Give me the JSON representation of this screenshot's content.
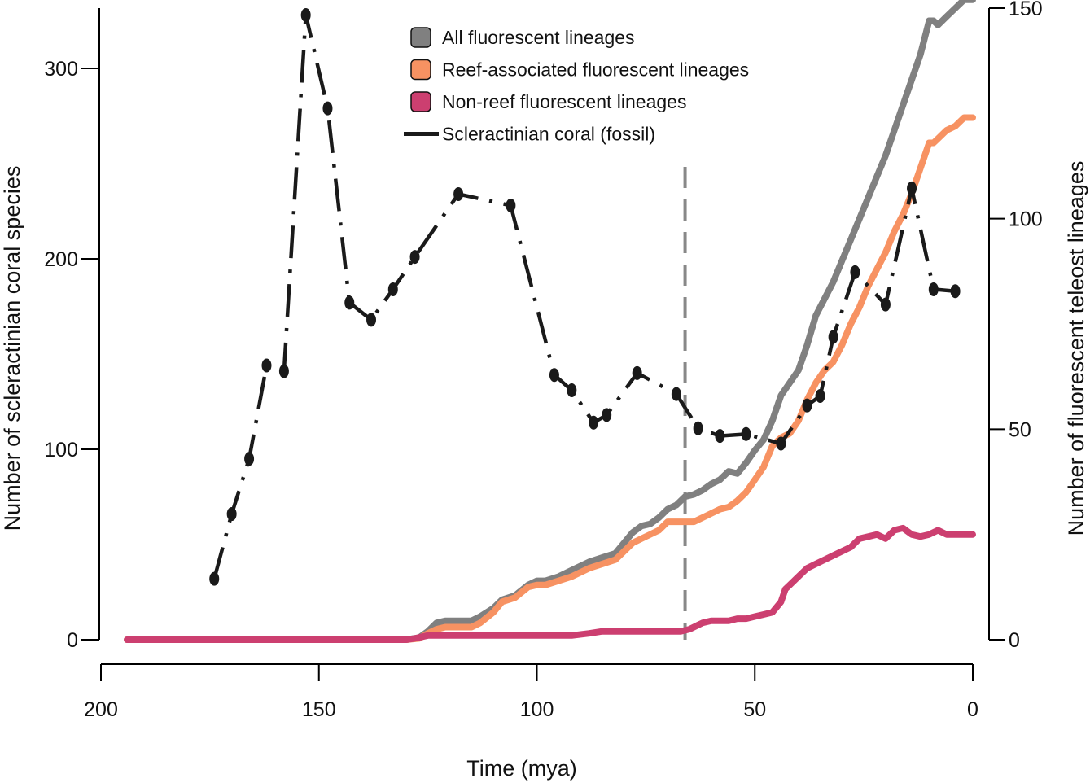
{
  "chart_data": {
    "type": "line",
    "x_axis": {
      "label": "Time (mya)",
      "range": [
        200,
        0
      ],
      "ticks": [
        200,
        150,
        100,
        50,
        0
      ],
      "reversed": true
    },
    "y_left": {
      "label": "Number of scleractinian coral species",
      "range": [
        0,
        335
      ],
      "ticks": [
        0,
        100,
        200,
        300
      ]
    },
    "y_right": {
      "label": "Number of fluorescent teleost lineages",
      "range": [
        0,
        150
      ],
      "ticks": [
        0,
        50,
        100,
        150
      ]
    },
    "vertical_marker": {
      "x": 66,
      "style": "dashed",
      "color": "#888888"
    },
    "legend": [
      {
        "label": "All fluorescent lineages",
        "color": "#808080",
        "kind": "box"
      },
      {
        "label": "Reef-associated fluorescent lineages",
        "color": "#F79262",
        "kind": "box"
      },
      {
        "label": "Non-reef fluorescent lineages",
        "color": "#CC3F70",
        "kind": "box"
      },
      {
        "label": "Scleractinian coral (fossil)",
        "color": "#1a1a1a",
        "kind": "line"
      }
    ],
    "series": [
      {
        "name": "All fluorescent lineages",
        "axis": "right",
        "color": "#808080",
        "x": [
          194,
          140,
          130,
          127,
          125,
          123,
          121,
          118,
          115,
          113,
          110,
          108,
          105,
          102,
          100,
          98,
          95,
          92,
          88,
          85,
          82,
          80,
          78,
          76,
          74,
          72,
          70,
          68,
          66,
          64,
          62,
          60,
          58,
          56,
          54,
          52,
          50,
          48,
          46,
          44,
          42,
          40,
          38,
          36,
          34,
          32,
          30,
          28,
          26,
          24,
          22,
          20,
          18,
          16,
          14,
          12,
          10,
          9,
          8,
          6,
          4,
          2,
          0
        ],
        "values": [
          0,
          0,
          0,
          0.5,
          2,
          4,
          4.5,
          4.5,
          4.5,
          5.5,
          7.5,
          9.5,
          10.5,
          13,
          14,
          14,
          15,
          16.5,
          18.5,
          19.5,
          20.5,
          23,
          25.5,
          27,
          27.5,
          29,
          31,
          32,
          34,
          34.5,
          35.5,
          37,
          38,
          40,
          39.5,
          42,
          45,
          47.5,
          52,
          58,
          61,
          64,
          70,
          77,
          81,
          85,
          90,
          95,
          100,
          105,
          110,
          115,
          121,
          127,
          133,
          139,
          147,
          147,
          146,
          148,
          150,
          152,
          152
        ]
      },
      {
        "name": "Reef-associated fluorescent lineages",
        "axis": "right",
        "color": "#F79262",
        "x": [
          194,
          140,
          130,
          127,
          125,
          123,
          121,
          118,
          115,
          113,
          110,
          108,
          105,
          102,
          100,
          98,
          95,
          92,
          88,
          85,
          82,
          80,
          78,
          76,
          74,
          72,
          70,
          68,
          66,
          64,
          62,
          60,
          58,
          56,
          54,
          52,
          50,
          48,
          46,
          44,
          42,
          40,
          38,
          36,
          34,
          32,
          30,
          28,
          26,
          24,
          22,
          20,
          18,
          16,
          14,
          12,
          10,
          9,
          8,
          6,
          4,
          2,
          0
        ],
        "values": [
          0,
          0,
          0,
          0.3,
          1.5,
          2.5,
          3,
          3,
          3,
          4,
          6.5,
          9,
          10,
          12.5,
          13,
          13,
          14,
          15,
          17,
          18,
          19,
          21,
          23,
          24,
          25,
          26,
          28,
          28,
          28,
          28,
          29,
          30,
          31,
          31.5,
          33,
          35,
          38,
          41,
          46,
          48,
          49,
          52,
          57,
          61,
          64,
          66,
          70,
          75,
          79,
          84,
          88,
          92,
          97,
          101,
          106,
          112,
          118,
          118,
          119,
          121,
          122,
          124,
          124
        ]
      },
      {
        "name": "Non-reef fluorescent lineages",
        "axis": "right",
        "color": "#CC3F70",
        "x": [
          194,
          140,
          130,
          128,
          125,
          122,
          118,
          110,
          105,
          100,
          98,
          95,
          92,
          88,
          85,
          80,
          75,
          70,
          67,
          65,
          64,
          63,
          62,
          60,
          58,
          56,
          54,
          52,
          50,
          48,
          46,
          44,
          43,
          42,
          40,
          38,
          36,
          34,
          32,
          30,
          28,
          26,
          24,
          22,
          20,
          18,
          16,
          14,
          12,
          10,
          8,
          6,
          4,
          2,
          0
        ],
        "values": [
          0,
          0,
          0,
          0.3,
          1,
          1,
          1,
          1,
          1,
          1,
          1,
          1,
          1,
          1.5,
          2,
          2,
          2,
          2,
          2,
          2.5,
          3,
          3.5,
          4,
          4.5,
          4.5,
          4.5,
          5,
          5,
          5.5,
          6,
          6.5,
          9,
          12,
          13,
          15,
          17,
          18,
          19,
          20,
          21,
          22,
          24,
          24.5,
          25,
          24,
          26,
          26.5,
          25,
          24.5,
          25,
          26,
          25,
          25,
          25,
          25
        ]
      },
      {
        "name": "Scleractinian coral (fossil)",
        "axis": "left",
        "color": "#1a1a1a",
        "style": "dash-dot",
        "x": [
          174,
          170,
          166,
          162,
          158,
          153,
          148,
          143,
          138,
          133,
          128,
          118,
          106,
          96,
          92,
          87,
          84,
          77,
          68,
          63,
          58,
          52,
          44,
          38,
          35,
          32,
          27,
          20,
          14,
          9,
          4
        ],
        "values": [
          32,
          66,
          95,
          144,
          141,
          328,
          279,
          177,
          168,
          184,
          201,
          234,
          228,
          139,
          131,
          114,
          118,
          140,
          129,
          111,
          107,
          108,
          103,
          123,
          128,
          159,
          193,
          176,
          237,
          184,
          183
        ]
      }
    ]
  }
}
